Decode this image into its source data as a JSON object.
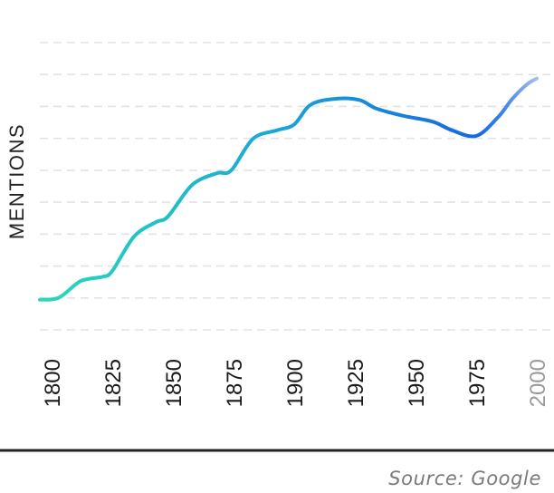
{
  "chart_data": {
    "type": "line",
    "ylabel": "MENTIONS",
    "x_ticks": [
      "1800",
      "1825",
      "1850",
      "1875",
      "1900",
      "1925",
      "1950",
      "1975",
      "2000"
    ],
    "xlim": [
      1800,
      2000
    ],
    "ylim": [
      0,
      10
    ],
    "grid": true,
    "series": [
      {
        "x": [
          1800,
          1803,
          1812,
          1821,
          1825,
          1834,
          1843,
          1848,
          1858,
          1868,
          1874,
          1883,
          1893,
          1900,
          1907,
          1918,
          1927,
          1934,
          1945,
          1957,
          1965,
          1975,
          1984,
          1990,
          1996,
          2000
        ],
        "y": [
          1.05,
          1.12,
          1.7,
          1.85,
          2.05,
          3.25,
          3.75,
          3.95,
          5.05,
          5.45,
          5.55,
          6.65,
          6.95,
          7.15,
          7.85,
          8.05,
          8.0,
          7.7,
          7.45,
          7.25,
          6.95,
          6.75,
          7.4,
          8.05,
          8.55,
          8.75
        ]
      }
    ],
    "projected_from": 1990,
    "colors": {
      "line_start": "#2bd9b8",
      "line_mid": "#1aa8d6",
      "line_end": "#1668e0",
      "projection": "#b8c8f2",
      "projected_tick": "#999999"
    }
  },
  "source": "Source: Google"
}
